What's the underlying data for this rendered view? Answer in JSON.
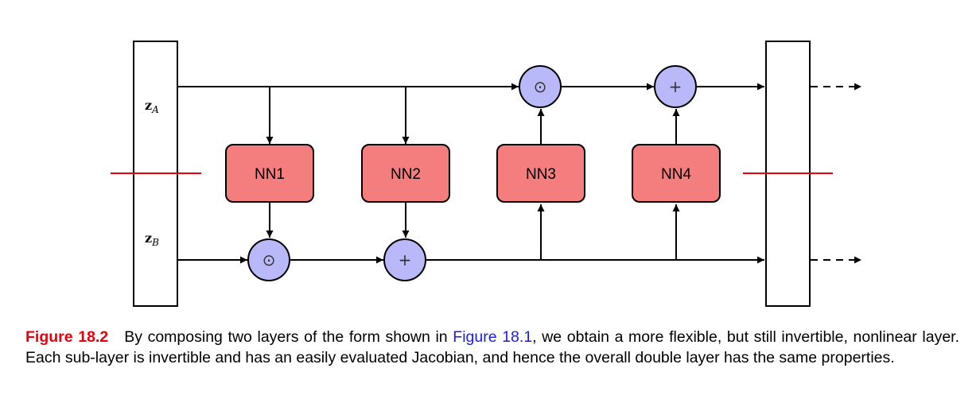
{
  "diagram": {
    "inputs": {
      "top": {
        "main": "z",
        "sub": "A"
      },
      "bottom": {
        "main": "z",
        "sub": "B"
      }
    },
    "networks": [
      "NN1",
      "NN2",
      "NN3",
      "NN4"
    ],
    "operators": {
      "multiply": "⊙",
      "add": "+"
    },
    "colors": {
      "nn_fill": "#f47e7e",
      "op_fill": "#b9b9f9",
      "split_line": "#e8000d",
      "stroke": "#000000"
    }
  },
  "caption": {
    "label": "Figure 18.2",
    "text_before": "By composing two layers of the form shown in ",
    "ref": "Figure 18.1",
    "text_after": ", we obtain a more flexible, but still invertible, nonlinear layer.  Each sub-layer is invertible and has an easily evaluated Jacobian, and hence the overall double layer has the same properties."
  }
}
